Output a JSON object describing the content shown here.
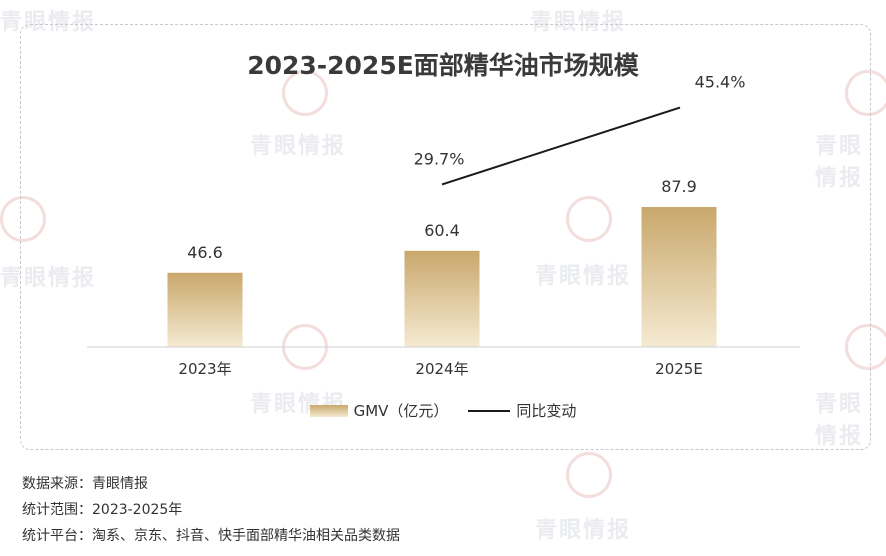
{
  "watermark": "青眼情报",
  "chart_data": {
    "type": "bar",
    "title": "2023-2025E面部精华油市场规模",
    "categories": [
      "2023年",
      "2024年",
      "2025E"
    ],
    "series": [
      {
        "name": "GMV（亿元）",
        "type": "bar",
        "values": [
          46.6,
          60.4,
          87.9
        ],
        "labels": [
          "46.6",
          "60.4",
          "87.9"
        ]
      },
      {
        "name": "同比变动",
        "type": "line",
        "values": [
          null,
          29.7,
          45.4
        ],
        "labels": [
          "",
          "29.7%",
          "45.4%"
        ]
      }
    ],
    "ylim": [
      0,
      100
    ],
    "grid": false,
    "legend": "bottom",
    "colors": {
      "bar_top": "#c9a86c",
      "bar_bottom": "#f5ead2",
      "line": "#1a1a1a"
    }
  },
  "notes": {
    "source": "数据来源：青眼情报",
    "range": "统计范围：2023-2025年",
    "platform": "统计平台：淘系、京东、抖音、快手面部精华油相关品类数据"
  }
}
